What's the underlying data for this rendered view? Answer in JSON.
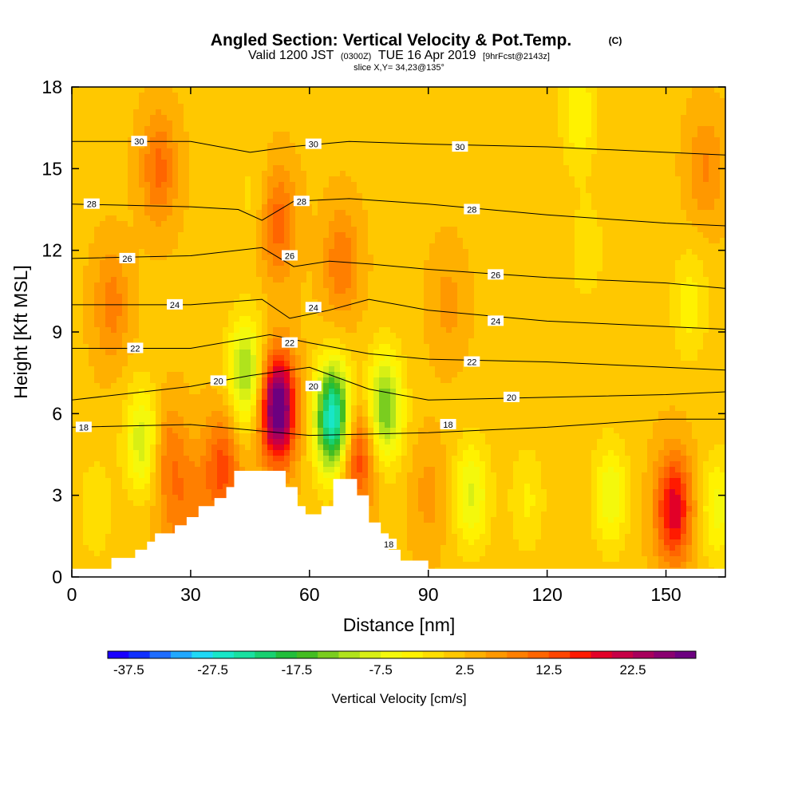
{
  "chart_data": {
    "type": "heatmap",
    "title_main": "Angled Section: Vertical Velocity & Pot.Temp.",
    "title_copyright": "(C)",
    "subtitle_part1": "Valid 1200 JST",
    "subtitle_part2": "(0300Z)",
    "subtitle_part3": "TUE 16 Apr 2019",
    "subtitle_part4": "[9hrFcst@2143z]",
    "subtitle_slice": "slice X,Y= 34,23@135°",
    "xlabel": "Distance [nm]",
    "ylabel": "Height [Kft MSL]",
    "xlim": [
      0,
      165
    ],
    "ylim": [
      0,
      18
    ],
    "x_ticks": [
      0,
      30,
      60,
      90,
      120,
      150
    ],
    "y_ticks": [
      0,
      3,
      6,
      9,
      12,
      15,
      18
    ],
    "colorbar": {
      "label": "Vertical Velocity [cm/s]",
      "tick_labels": [
        "-37.5",
        "-27.5",
        "-17.5",
        "-7.5",
        "2.5",
        "12.5",
        "22.5"
      ],
      "min": -40,
      "max": 30,
      "step": 2.5,
      "colors": [
        "#1a00ff",
        "#1030ff",
        "#1f6dff",
        "#21a8ff",
        "#1fd8f5",
        "#18e6c8",
        "#19e0a0",
        "#18d070",
        "#22be3b",
        "#43bd22",
        "#7acd1f",
        "#b0e31c",
        "#d8ef14",
        "#f4f80c",
        "#fff200",
        "#ffde00",
        "#ffc800",
        "#ffb000",
        "#ff9800",
        "#ff7f00",
        "#ff6500",
        "#ff4500",
        "#ff1a00",
        "#e20028",
        "#c60046",
        "#a8005c",
        "#8a0070",
        "#6c0080"
      ]
    },
    "background_value": 2,
    "features": [
      {
        "x": 52,
        "y": 6.2,
        "value": 30
      },
      {
        "x": 66,
        "y": 5.8,
        "value": -30
      },
      {
        "x": 44,
        "y": 7.5,
        "value": -15
      },
      {
        "x": 79,
        "y": 6.2,
        "value": -17
      },
      {
        "x": 72,
        "y": 4.5,
        "value": 14
      },
      {
        "x": 38,
        "y": 4.0,
        "value": 12
      },
      {
        "x": 18,
        "y": 5.0,
        "value": -12
      },
      {
        "x": 24,
        "y": 4.5,
        "value": 8
      },
      {
        "x": 30,
        "y": 2.8,
        "value": 6
      },
      {
        "x": 152,
        "y": 2.5,
        "value": 18
      },
      {
        "x": 101,
        "y": 3.0,
        "value": -10
      },
      {
        "x": 136,
        "y": 3.0,
        "value": -9
      },
      {
        "x": 115,
        "y": 2.8,
        "value": -5
      },
      {
        "x": 163,
        "y": 2.5,
        "value": -8
      },
      {
        "x": 156,
        "y": 10.0,
        "value": -6
      },
      {
        "x": 10,
        "y": 10.0,
        "value": 7
      },
      {
        "x": 22,
        "y": 15.0,
        "value": 9
      },
      {
        "x": 52,
        "y": 13.0,
        "value": 10
      },
      {
        "x": 68,
        "y": 11.5,
        "value": 8
      },
      {
        "x": 46,
        "y": 14.0,
        "value": -3
      },
      {
        "x": 128,
        "y": 17.0,
        "value": -7
      },
      {
        "x": 130,
        "y": 12.0,
        "value": -4
      },
      {
        "x": 160,
        "y": 15.0,
        "value": 6
      },
      {
        "x": 95,
        "y": 10.0,
        "value": 4
      },
      {
        "x": 25,
        "y": 1.5,
        "value": 3
      },
      {
        "x": 6,
        "y": 2.5,
        "value": -4
      },
      {
        "x": 90,
        "y": 3.0,
        "value": 4
      }
    ],
    "theta_lines": [
      {
        "label": "18",
        "pts": [
          [
            0,
            5.5
          ],
          [
            30,
            5.6
          ],
          [
            60,
            5.2
          ],
          [
            90,
            5.3
          ],
          [
            120,
            5.5
          ],
          [
            150,
            5.8
          ],
          [
            165,
            5.8
          ]
        ]
      },
      {
        "label": "20",
        "pts": [
          [
            0,
            6.5
          ],
          [
            30,
            7.0
          ],
          [
            45,
            7.4
          ],
          [
            60,
            7.7
          ],
          [
            75,
            6.9
          ],
          [
            90,
            6.5
          ],
          [
            120,
            6.6
          ],
          [
            150,
            6.7
          ],
          [
            165,
            6.8
          ]
        ]
      },
      {
        "label": "22",
        "pts": [
          [
            0,
            8.4
          ],
          [
            30,
            8.4
          ],
          [
            50,
            8.9
          ],
          [
            60,
            8.6
          ],
          [
            75,
            8.2
          ],
          [
            90,
            8.0
          ],
          [
            120,
            7.9
          ],
          [
            150,
            7.7
          ],
          [
            165,
            7.6
          ]
        ]
      },
      {
        "label": "24",
        "pts": [
          [
            0,
            10.0
          ],
          [
            30,
            10.0
          ],
          [
            48,
            10.2
          ],
          [
            55,
            9.5
          ],
          [
            65,
            9.8
          ],
          [
            75,
            10.2
          ],
          [
            90,
            9.8
          ],
          [
            120,
            9.4
          ],
          [
            150,
            9.2
          ],
          [
            165,
            9.1
          ]
        ]
      },
      {
        "label": "26",
        "pts": [
          [
            0,
            11.7
          ],
          [
            30,
            11.8
          ],
          [
            48,
            12.1
          ],
          [
            56,
            11.4
          ],
          [
            65,
            11.6
          ],
          [
            75,
            11.5
          ],
          [
            90,
            11.3
          ],
          [
            120,
            11.0
          ],
          [
            150,
            10.8
          ],
          [
            165,
            10.6
          ]
        ]
      },
      {
        "label": "28",
        "pts": [
          [
            0,
            13.7
          ],
          [
            30,
            13.6
          ],
          [
            42,
            13.5
          ],
          [
            48,
            13.1
          ],
          [
            56,
            13.8
          ],
          [
            70,
            13.9
          ],
          [
            90,
            13.7
          ],
          [
            120,
            13.3
          ],
          [
            150,
            13.0
          ],
          [
            165,
            12.9
          ]
        ]
      },
      {
        "label": "30",
        "pts": [
          [
            0,
            16.0
          ],
          [
            30,
            16.0
          ],
          [
            45,
            15.6
          ],
          [
            55,
            15.8
          ],
          [
            70,
            16.0
          ],
          [
            90,
            15.9
          ],
          [
            120,
            15.8
          ],
          [
            150,
            15.6
          ],
          [
            165,
            15.5
          ]
        ]
      }
    ],
    "theta_label_positions": [
      {
        "label": "30",
        "x": 17,
        "y": 16.0
      },
      {
        "label": "30",
        "x": 61,
        "y": 15.9
      },
      {
        "label": "30",
        "x": 98,
        "y": 15.8
      },
      {
        "label": "28",
        "x": 5,
        "y": 13.7
      },
      {
        "label": "28",
        "x": 58,
        "y": 13.8
      },
      {
        "label": "28",
        "x": 101,
        "y": 13.5
      },
      {
        "label": "26",
        "x": 14,
        "y": 11.7
      },
      {
        "label": "26",
        "x": 55,
        "y": 11.8
      },
      {
        "label": "26",
        "x": 107,
        "y": 11.1
      },
      {
        "label": "24",
        "x": 26,
        "y": 10.0
      },
      {
        "label": "24",
        "x": 61,
        "y": 9.9
      },
      {
        "label": "24",
        "x": 107,
        "y": 9.4
      },
      {
        "label": "22",
        "x": 16,
        "y": 8.4
      },
      {
        "label": "22",
        "x": 55,
        "y": 8.6
      },
      {
        "label": "22",
        "x": 101,
        "y": 7.9
      },
      {
        "label": "20",
        "x": 37,
        "y": 7.2
      },
      {
        "label": "20",
        "x": 61,
        "y": 7.0
      },
      {
        "label": "20",
        "x": 111,
        "y": 6.6
      },
      {
        "label": "18",
        "x": 3,
        "y": 5.5
      },
      {
        "label": "18",
        "x": 95,
        "y": 5.6
      },
      {
        "label": "18",
        "x": 80,
        "y": 1.2
      }
    ],
    "terrain": [
      [
        0,
        0.3
      ],
      [
        10,
        0.3
      ],
      [
        10,
        0.7
      ],
      [
        16,
        0.7
      ],
      [
        16,
        1.0
      ],
      [
        19,
        1.0
      ],
      [
        19,
        1.3
      ],
      [
        21,
        1.3
      ],
      [
        21,
        1.6
      ],
      [
        26,
        1.6
      ],
      [
        26,
        1.9
      ],
      [
        29,
        1.9
      ],
      [
        29,
        2.2
      ],
      [
        32,
        2.2
      ],
      [
        32,
        2.6
      ],
      [
        36,
        2.6
      ],
      [
        36,
        2.9
      ],
      [
        39,
        2.9
      ],
      [
        39,
        3.3
      ],
      [
        41,
        3.3
      ],
      [
        41,
        3.9
      ],
      [
        54,
        3.9
      ],
      [
        54,
        3.3
      ],
      [
        57,
        3.3
      ],
      [
        57,
        2.6
      ],
      [
        59,
        2.6
      ],
      [
        59,
        2.3
      ],
      [
        63,
        2.3
      ],
      [
        63,
        2.6
      ],
      [
        66,
        2.6
      ],
      [
        66,
        3.6
      ],
      [
        72,
        3.6
      ],
      [
        72,
        3.0
      ],
      [
        75,
        3.0
      ],
      [
        75,
        2.0
      ],
      [
        78,
        2.0
      ],
      [
        78,
        1.6
      ],
      [
        80,
        1.6
      ],
      [
        80,
        1.0
      ],
      [
        83,
        1.0
      ],
      [
        83,
        0.6
      ],
      [
        90,
        0.6
      ],
      [
        90,
        0.3
      ],
      [
        165,
        0.3
      ]
    ]
  }
}
